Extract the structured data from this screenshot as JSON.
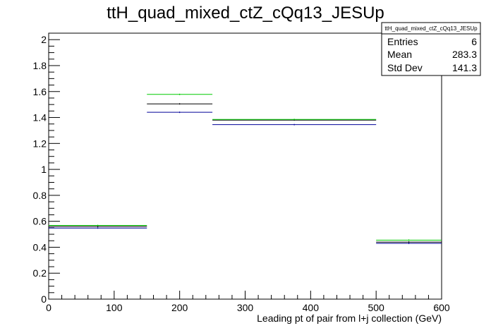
{
  "chart_data": {
    "type": "step",
    "title": "ttH_quad_mixed_ctZ_cQq13_JESUp",
    "xlabel": "Leading pt of pair from l+j collection (GeV)",
    "ylabel": "",
    "xlim": [
      0,
      600
    ],
    "ylim": [
      0,
      2.05
    ],
    "x_ticks": [
      0,
      100,
      200,
      300,
      400,
      500,
      600
    ],
    "y_ticks": [
      0,
      0.2,
      0.4,
      0.6,
      0.8,
      1,
      1.2,
      1.4,
      1.6,
      1.8,
      2
    ],
    "bin_edges": [
      0,
      150,
      250,
      500,
      600
    ],
    "series": [
      {
        "color": "#000000",
        "values": [
          0.56,
          1.505,
          1.38,
          0.44
        ]
      },
      {
        "color": "#00cc00",
        "values": [
          0.568,
          1.578,
          1.385,
          0.455
        ]
      },
      {
        "color": "#000099",
        "values": [
          0.548,
          1.44,
          1.345,
          0.43
        ]
      }
    ],
    "stats": {
      "name": "ttH_quad_mixed_ctZ_cQq13_JESUp",
      "rows": [
        {
          "label": "Entries",
          "value": "6"
        },
        {
          "label": "Mean",
          "value": "283.3"
        },
        {
          "label": "Std Dev",
          "value": "141.3"
        }
      ]
    },
    "grid": false
  }
}
